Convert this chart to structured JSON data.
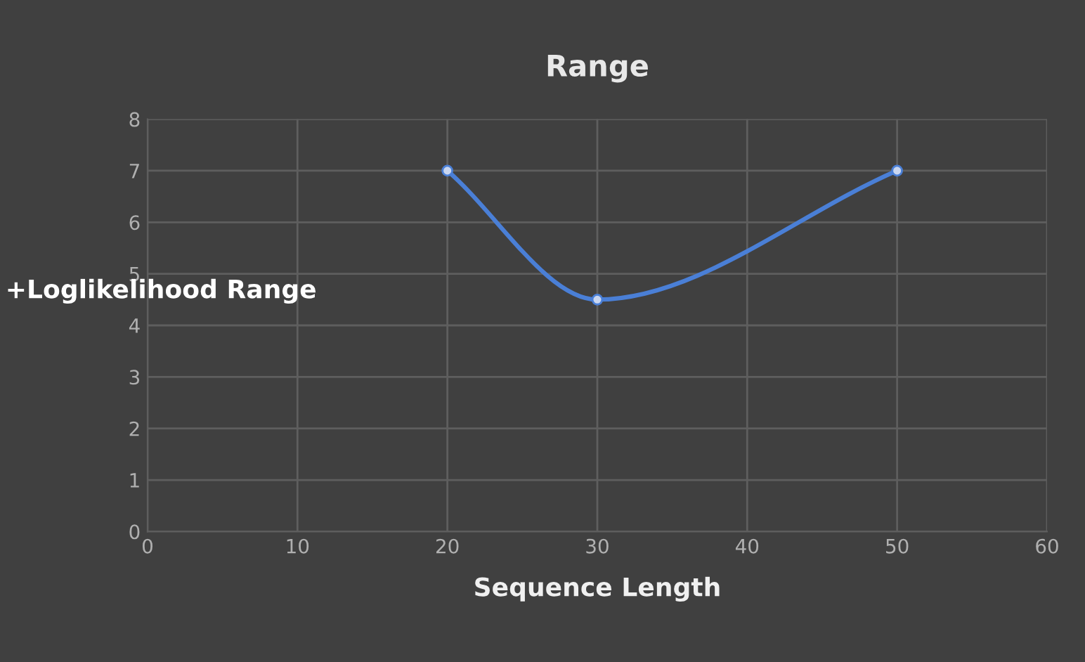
{
  "chart_data": {
    "type": "line",
    "title": "Range",
    "xlabel": "Sequence Length",
    "ylabel": "+Loglikelihood Range",
    "x": [
      20,
      30,
      50
    ],
    "series": [
      {
        "color": "#4a7fd6",
        "values": [
          7,
          4.5,
          7
        ]
      }
    ],
    "xlim": [
      0,
      60
    ],
    "xticks": [
      0,
      10,
      20,
      30,
      40,
      50,
      60
    ],
    "ylim": [
      0,
      8
    ],
    "yticks": [
      0,
      1,
      2,
      3,
      4,
      5,
      6,
      7,
      8
    ],
    "grid": true,
    "marker": "circle",
    "line_style": "solid",
    "legend": false
  }
}
